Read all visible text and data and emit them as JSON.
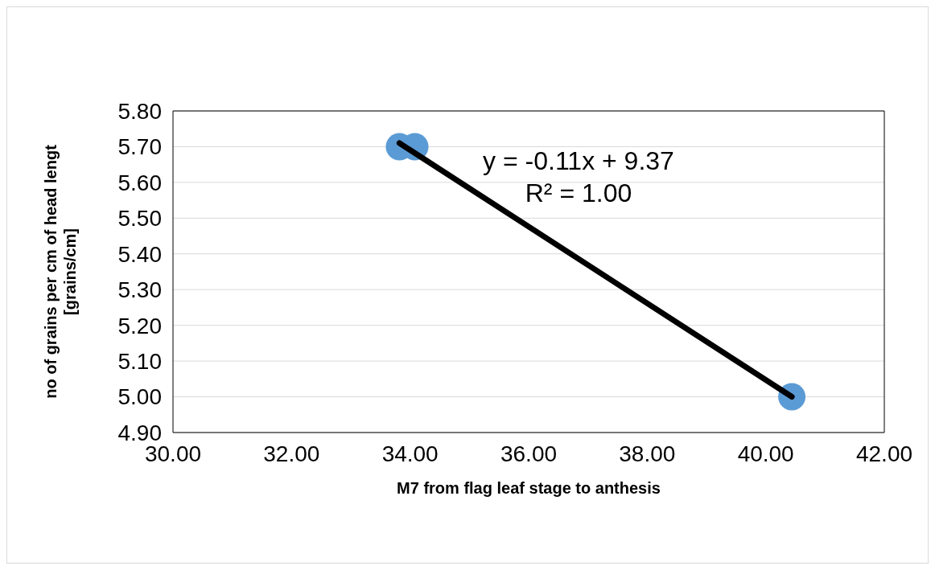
{
  "chart_data": {
    "type": "scatter",
    "xlabel": "M7 from flag leaf stage to anthesis",
    "ylabel": "no of grains per cm of head lengt\n[grains/cm]",
    "x": [
      33.82,
      34.08,
      40.44
    ],
    "series": [
      {
        "color": "#5b9bd5",
        "marker": "circle",
        "values": [
          5.7,
          5.7,
          5.0
        ]
      },
      {
        "type": "line",
        "color": "#000000",
        "marker": "none",
        "x": [
          33.82,
          40.44
        ],
        "values": [
          5.71,
          5.0
        ]
      }
    ],
    "xlim": [
      30,
      42
    ],
    "xticks": [
      {
        "value": 30,
        "label": "30.00"
      },
      {
        "value": 32,
        "label": "32.00"
      },
      {
        "value": 34,
        "label": "34.00"
      },
      {
        "value": 36,
        "label": "36.00"
      },
      {
        "value": 38,
        "label": "38.00"
      },
      {
        "value": 40,
        "label": "40.00"
      },
      {
        "value": 42,
        "label": "42.00"
      }
    ],
    "ylim": [
      4.9,
      5.8
    ],
    "yticks": [
      {
        "value": 4.9,
        "label": "4.90"
      },
      {
        "value": 5.0,
        "label": "5.00"
      },
      {
        "value": 5.1,
        "label": "5.10"
      },
      {
        "value": 5.2,
        "label": "5.20"
      },
      {
        "value": 5.3,
        "label": "5.30"
      },
      {
        "value": 5.4,
        "label": "5.40"
      },
      {
        "value": 5.5,
        "label": "5.50"
      },
      {
        "value": 5.6,
        "label": "5.60"
      },
      {
        "value": 5.7,
        "label": "5.70"
      },
      {
        "value": 5.8,
        "label": "5.80"
      }
    ],
    "grid": "y",
    "annotations": [
      "y = -0.11x + 9.37",
      "R² = 1.00"
    ]
  }
}
